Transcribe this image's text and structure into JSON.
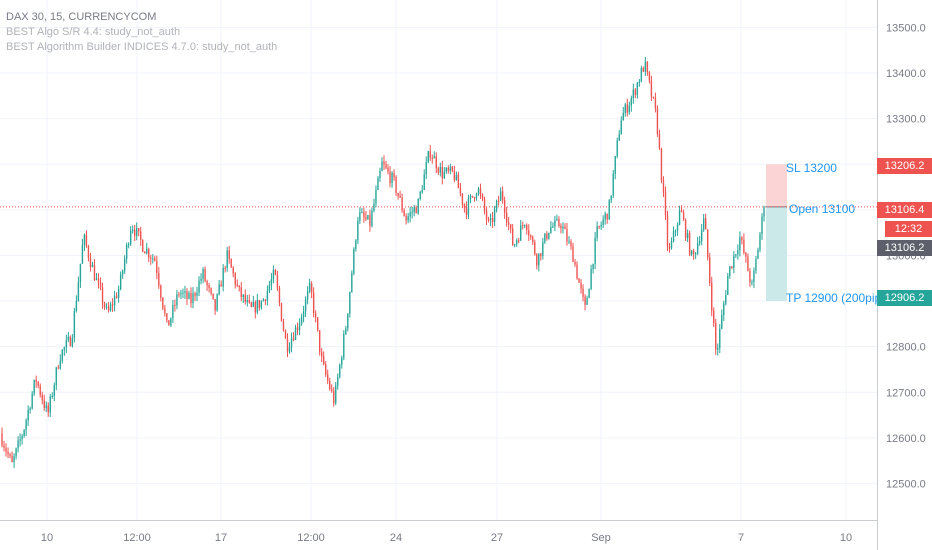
{
  "legend": {
    "title": "DAX 30, 15, CURRENCYCOM",
    "line2": "BEST Algo S/R 4.4: study_not_auth",
    "line3": "BEST Algorithm Builder INDICES 4.7.0: study_not_auth"
  },
  "labels": {
    "sl": "SL 13200",
    "open": "Open 13100",
    "tp": "TP 12900 (200pip"
  },
  "badges": {
    "sl": "13206.2",
    "current": "13106.4",
    "timer": "12:32",
    "last": "13106.2",
    "tp": "12906.2"
  },
  "colors": {
    "up": "#26a69a",
    "down": "#ef5350",
    "sl_zone": "#fbd5d5",
    "tp_zone": "#cbe9e9",
    "label_blue": "#2196f3"
  },
  "chart_data": {
    "type": "candlestick",
    "title": "DAX 30, 15, CURRENCYCOM",
    "y_ticks": [
      12500,
      12600,
      12700,
      12800,
      12900,
      13000,
      13100,
      13200,
      13300,
      13400,
      13500
    ],
    "y_tick_labels": [
      "12500.0",
      "12600.0",
      "12700.0",
      "12800.0",
      "12900.0",
      "13000.0",
      "13100.0",
      "13200.0",
      "13300.0",
      "13400.0",
      "13500.0"
    ],
    "ylim": [
      12420,
      13560
    ],
    "x_ticks": [
      "10",
      "12:00",
      "17",
      "12:00",
      "24",
      "27",
      "Sep",
      "7",
      "10"
    ],
    "current_price": 13106.4,
    "price_path": [
      [
        "10 start",
        12610
      ],
      [
        "",
        12540
      ],
      [
        "",
        12620
      ],
      [
        "",
        12730
      ],
      [
        "",
        12650
      ],
      [
        "",
        12780
      ],
      [
        "",
        12820
      ],
      [
        "",
        13040
      ],
      [
        "",
        12950
      ],
      [
        "",
        12870
      ],
      [
        "",
        12930
      ],
      [
        "",
        13070
      ],
      [
        "",
        13020
      ],
      [
        "",
        12990
      ],
      [
        "17",
        12840
      ],
      [
        "",
        12920
      ],
      [
        "",
        12900
      ],
      [
        "",
        12960
      ],
      [
        "",
        12880
      ],
      [
        "",
        13000
      ],
      [
        "",
        12920
      ],
      [
        "",
        12880
      ],
      [
        "",
        12900
      ],
      [
        "",
        12960
      ],
      [
        "",
        12800
      ],
      [
        "",
        12850
      ],
      [
        "",
        12930
      ],
      [
        "",
        12760
      ],
      [
        "24",
        12680
      ],
      [
        "",
        12850
      ],
      [
        "",
        13090
      ],
      [
        "",
        13070
      ],
      [
        "",
        13200
      ],
      [
        "",
        13160
      ],
      [
        "",
        13080
      ],
      [
        "",
        13110
      ],
      [
        "27",
        13230
      ],
      [
        "",
        13180
      ],
      [
        "",
        13180
      ],
      [
        "",
        13100
      ],
      [
        "",
        13150
      ],
      [
        "",
        13060
      ],
      [
        "",
        13140
      ],
      [
        "",
        13020
      ],
      [
        "",
        13080
      ],
      [
        "",
        12990
      ],
      [
        "",
        13060
      ],
      [
        "Sep",
        13070
      ],
      [
        "",
        13000
      ],
      [
        "",
        12880
      ],
      [
        "",
        13050
      ],
      [
        "",
        13100
      ],
      [
        "",
        13300
      ],
      [
        "",
        13350
      ],
      [
        "",
        13420
      ],
      [
        "",
        13300
      ],
      [
        "",
        13000
      ],
      [
        "",
        13100
      ],
      [
        "",
        12990
      ],
      [
        "",
        13080
      ],
      [
        "",
        12780
      ],
      [
        "",
        12960
      ],
      [
        "",
        13040
      ],
      [
        "",
        12930
      ],
      [
        "end",
        13106
      ]
    ]
  }
}
